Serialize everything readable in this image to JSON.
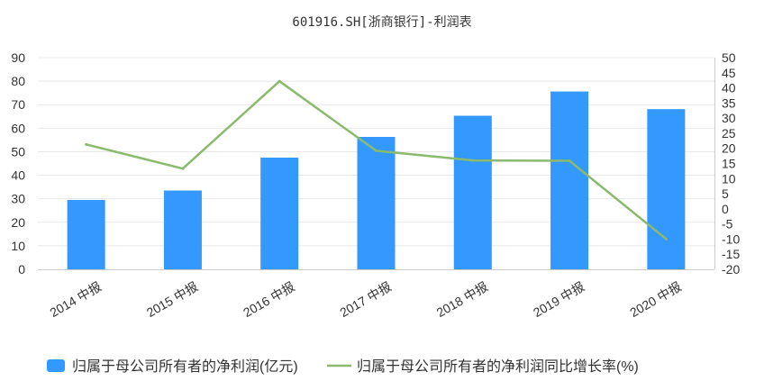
{
  "chart_data": {
    "type": "bar",
    "title": "601916.SH[浙商银行]-利润表",
    "categories": [
      "2014 中报",
      "2015 中报",
      "2016 中报",
      "2017 中报",
      "2018 中报",
      "2019 中报",
      "2020 中报"
    ],
    "series": [
      {
        "name": "归属于母公司所有者的净利润(亿元)",
        "type": "bar",
        "axis": "left",
        "color": "#3399ff",
        "values": [
          29.5,
          33.5,
          47.5,
          56.3,
          65.3,
          75.6,
          68.1
        ]
      },
      {
        "name": "归属于母公司所有者的净利润同比增长率(%)",
        "type": "line",
        "axis": "right",
        "color": "#8bba6e",
        "values": [
          21.3,
          13.3,
          42.2,
          19.2,
          16.0,
          15.9,
          -10.0
        ]
      }
    ],
    "y_left": {
      "min": 0,
      "max": 90,
      "step": 10
    },
    "y_right": {
      "min": -20,
      "max": 50,
      "step": 5
    },
    "grid": true,
    "legend_position": "bottom"
  }
}
